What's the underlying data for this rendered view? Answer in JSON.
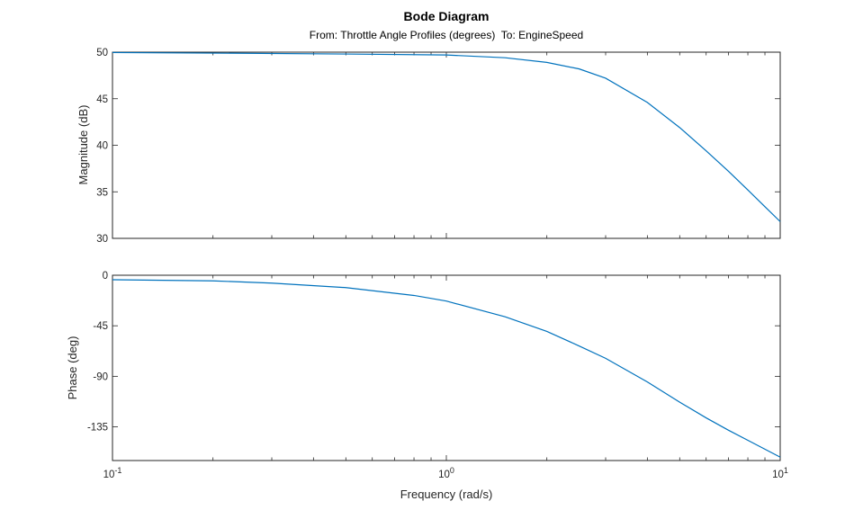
{
  "chart_data": {
    "type": "line",
    "title": "Bode Diagram",
    "subtitle": "From: Throttle Angle Profiles (degrees)  To: EngineSpeed",
    "xlabel": "Frequency (rad/s)",
    "xscale": "log",
    "xlim": [
      0.1,
      10
    ],
    "x_ticks": [
      {
        "base": "10",
        "exp": "-1",
        "value": 0.1
      },
      {
        "base": "10",
        "exp": "0",
        "value": 1
      },
      {
        "base": "10",
        "exp": "1",
        "value": 10
      }
    ],
    "line_color": "#0072BD",
    "magnitude": {
      "ylabel": "Magnitude (dB)",
      "ylim": [
        30,
        50
      ],
      "y_ticks": [
        "30",
        "35",
        "40",
        "45",
        "50"
      ],
      "x": [
        0.1,
        0.2,
        0.5,
        1,
        1.5,
        2,
        2.5,
        3,
        4,
        5,
        6,
        7,
        8,
        9,
        10
      ],
      "y": [
        49.96,
        49.9,
        49.8,
        49.7,
        49.4,
        48.9,
        48.2,
        47.2,
        44.6,
        41.9,
        39.4,
        37.2,
        35.2,
        33.4,
        31.8
      ]
    },
    "phase": {
      "ylabel": "Phase (deg)",
      "ylim": [
        -165,
        0
      ],
      "y_ticks": [
        "0",
        "-45",
        "-90",
        "-135"
      ],
      "x": [
        0.1,
        0.2,
        0.3,
        0.5,
        0.8,
        1,
        1.5,
        2,
        2.5,
        3,
        4,
        5,
        6,
        7,
        8,
        10
      ],
      "y": [
        -4,
        -5,
        -7,
        -11,
        -18,
        -23,
        -37,
        -50,
        -63,
        -74,
        -95,
        -113,
        -127,
        -138,
        -147,
        -162
      ]
    }
  }
}
